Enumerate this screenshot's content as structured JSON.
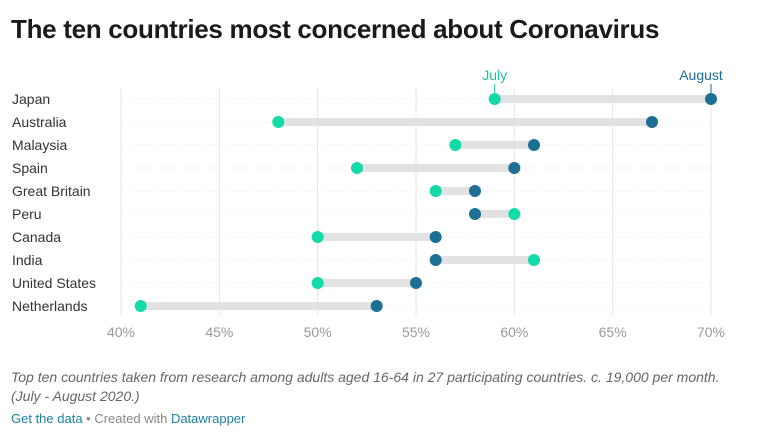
{
  "title": "The ten countries most concerned about Coronavirus",
  "chart_data": {
    "type": "dot-range",
    "title": "The ten countries most concerned about Coronavirus",
    "series": [
      {
        "name": "July",
        "color": "#14d9a8"
      },
      {
        "name": "August",
        "color": "#1d6f93"
      }
    ],
    "categories": [
      "Japan",
      "Australia",
      "Malaysia",
      "Spain",
      "Great Britain",
      "Peru",
      "Canada",
      "India",
      "United States",
      "Netherlands"
    ],
    "july": [
      59,
      48,
      57,
      52,
      56,
      60,
      50,
      61,
      50,
      41
    ],
    "august": [
      70,
      67,
      61,
      60,
      58,
      58,
      56,
      56,
      55,
      53
    ],
    "x_ticks": [
      "40%",
      "45%",
      "50%",
      "55%",
      "60%",
      "65%",
      "70%"
    ],
    "x_tick_values": [
      40,
      45,
      50,
      55,
      60,
      65,
      70
    ],
    "xlim": [
      40,
      70
    ],
    "legend": {
      "july": "July",
      "august": "August"
    }
  },
  "note": "Top ten countries taken from research among adults aged 16-64 in 27 participating countries. c. 19,000 per month. (July - August 2020.)",
  "footer": {
    "get_data": "Get the data",
    "separator": " • Created with ",
    "tool": "Datawrapper"
  }
}
